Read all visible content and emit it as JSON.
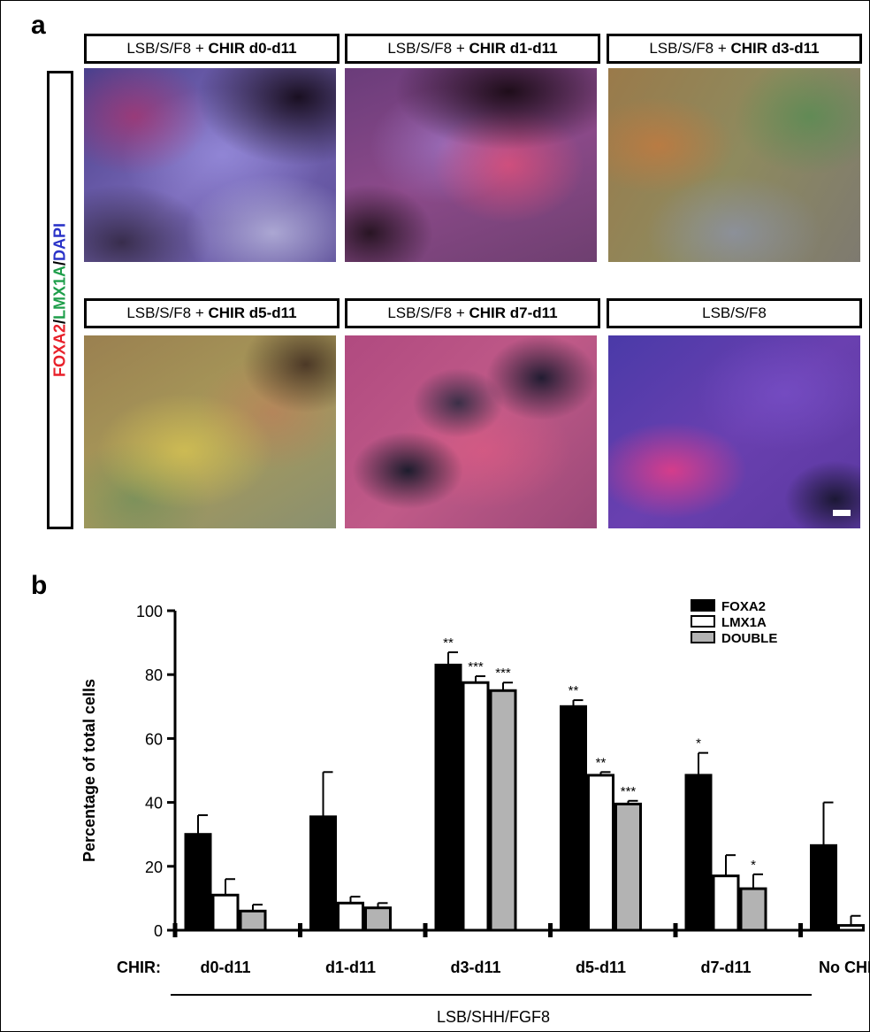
{
  "panel_a": {
    "letter": "a",
    "stain": {
      "part1": "FOXA2",
      "sep1": "/",
      "part2": "LMX1A",
      "sep2": "/",
      "part3": "DAPI",
      "colors": {
        "FOXA2": "#e8202a",
        "LMX1A": "#1e9e4a",
        "DAPI": "#2a33c8"
      }
    },
    "images": [
      {
        "prefix": "LSB/S/F8 + ",
        "bold": "CHIR d0-d11",
        "palette": "blue-red-mixed"
      },
      {
        "prefix": "LSB/S/F8 + ",
        "bold": "CHIR d1-d11",
        "palette": "red-blue"
      },
      {
        "prefix": "LSB/S/F8 + ",
        "bold": "CHIR d3-d11",
        "palette": "green-orange"
      },
      {
        "prefix": "LSB/S/F8 + ",
        "bold": "CHIR d5-d11",
        "palette": "yellow-green"
      },
      {
        "prefix": "LSB/S/F8 + ",
        "bold": "CHIR d7-d11",
        "palette": "red-pink"
      },
      {
        "prefix": "LSB/S/F8",
        "bold": "",
        "palette": "blue-magenta"
      }
    ]
  },
  "panel_b": {
    "letter": "b"
  },
  "chart_data": {
    "type": "bar",
    "ylabel": "Percentage of total cells",
    "ylim": [
      0,
      100
    ],
    "yticks": [
      0,
      20,
      40,
      60,
      80,
      100
    ],
    "x_prefix_label": "CHIR:",
    "categories": [
      "d0-d11",
      "d1-d11",
      "d3-d11",
      "d5-d11",
      "d7-d11",
      "No CHIR"
    ],
    "group_label": "LSB/SHH/FGF8",
    "legend_position": "top-right",
    "series": [
      {
        "name": "FOXA2",
        "color": "#000000",
        "values": [
          30,
          35.5,
          83,
          70,
          48.5,
          26.5
        ],
        "errors": [
          6,
          14,
          4,
          2,
          7,
          13.5
        ],
        "sig": [
          "",
          "",
          "**",
          "**",
          "*",
          ""
        ]
      },
      {
        "name": "LMX1A",
        "color": "#ffffff",
        "values": [
          11,
          8.5,
          77.5,
          48.5,
          17,
          1.5
        ],
        "errors": [
          5,
          2,
          2,
          1,
          6.5,
          3
        ],
        "sig": [
          "",
          "",
          "***",
          "**",
          "",
          ""
        ]
      },
      {
        "name": "DOUBLE",
        "color": "#b3b3b3",
        "values": [
          6,
          7,
          75,
          39.5,
          13,
          null
        ],
        "errors": [
          2,
          1.5,
          2.5,
          1,
          4.5,
          null
        ],
        "sig": [
          "",
          "",
          "***",
          "***",
          "*",
          ""
        ]
      }
    ]
  }
}
